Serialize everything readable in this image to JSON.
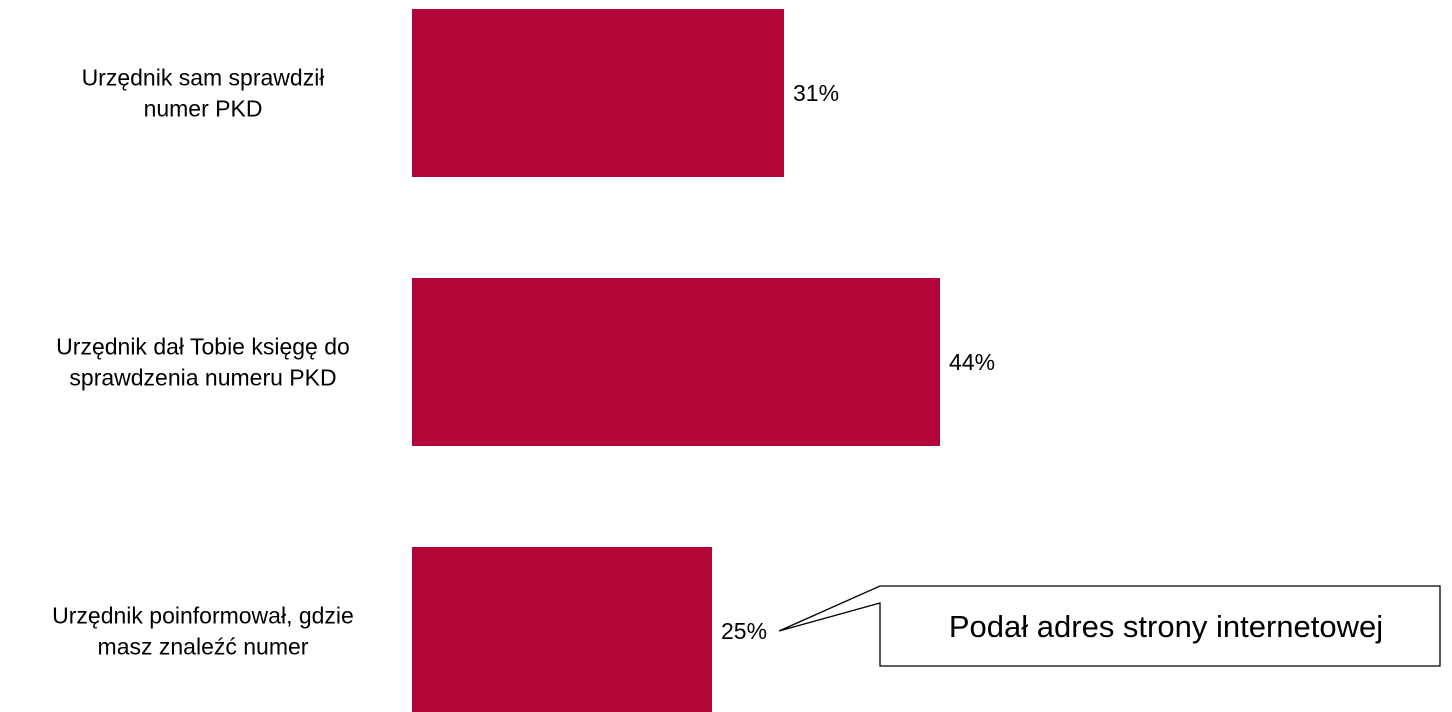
{
  "chart_data": {
    "type": "bar",
    "orientation": "horizontal",
    "categories": [
      [
        "Urzędnik sam sprawdził",
        "numer PKD"
      ],
      [
        "Urzędnik dał Tobie księgę do",
        "sprawdzenia numeru PKD"
      ],
      [
        "Urzędnik poinformował, gdzie",
        "masz znaleźć numer"
      ]
    ],
    "values": [
      31,
      44,
      25
    ],
    "data_labels": [
      "31%",
      "44%",
      "25%"
    ],
    "unit": "%",
    "xlim": [
      0,
      100
    ],
    "grid": false,
    "legend": "none",
    "bar_color": "#b20639",
    "callout": {
      "text": "Podał adres strony internetowej",
      "attached_to_category_index": 2
    }
  }
}
